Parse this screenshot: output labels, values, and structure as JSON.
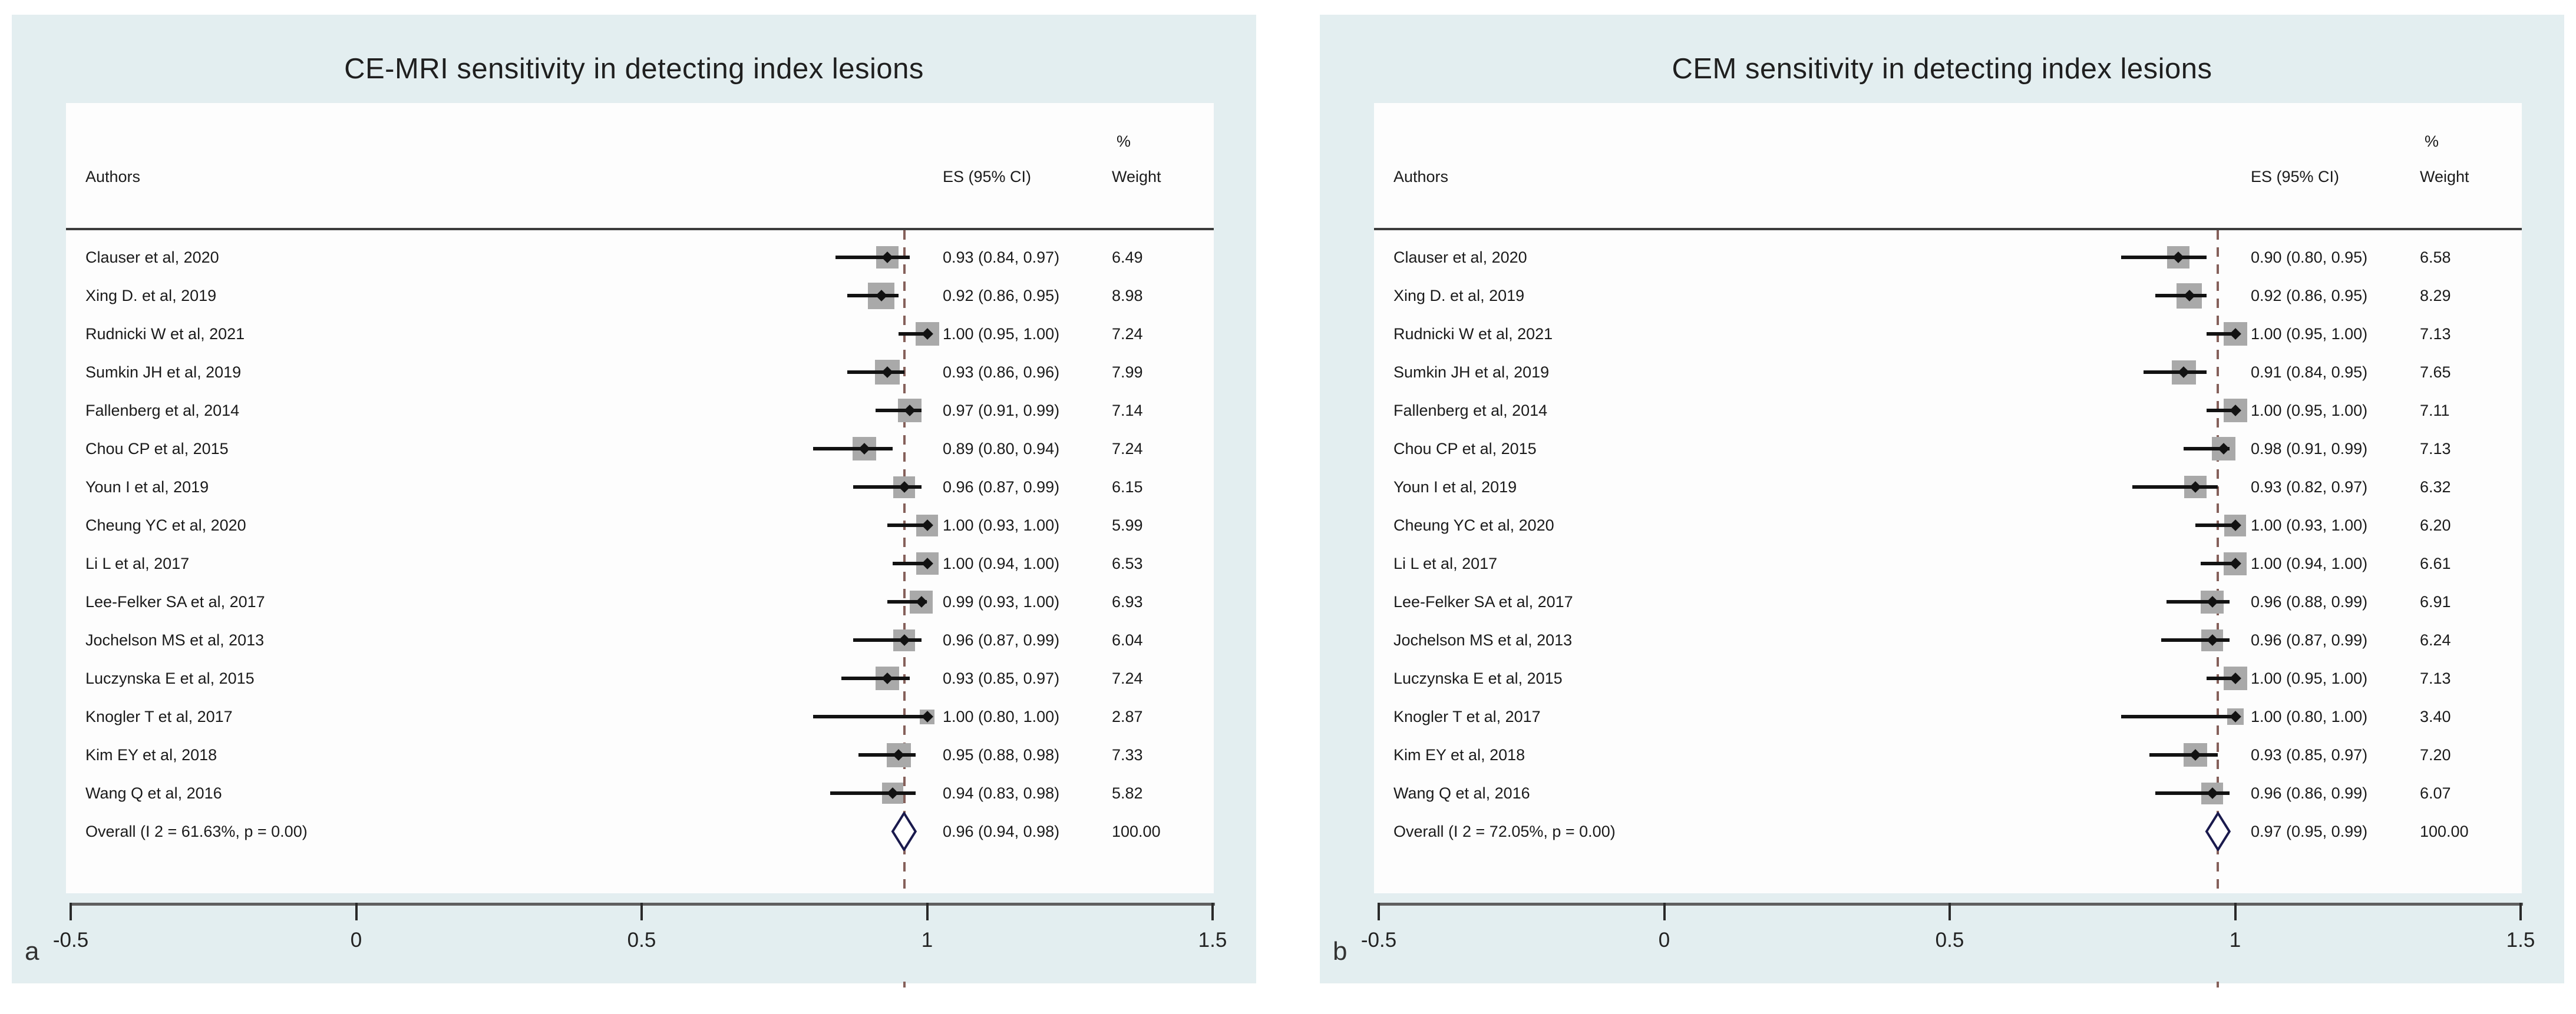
{
  "header": {
    "authors": "Authors",
    "es": "ES (95% CI)",
    "pct": "%",
    "weight": "Weight"
  },
  "colors": {
    "panel_bg": "#e3eef0",
    "plot_bg": "#fdfdfd",
    "text": "#1b1b1b",
    "axis_line": "#5f5f5f",
    "tick": "#2a2a2a",
    "header_separator": "#3c3c3c",
    "reference_line": "#85605a",
    "ci_line": "#121212",
    "point_marker": "#121212",
    "weight_square": "#a9a9a9",
    "diamond_stroke": "#1a1a4d",
    "diamond_fill": "#ffffff"
  },
  "chart_data": [
    {
      "type": "forest",
      "panel_label": "a",
      "title": "CE-MRI sensitivity in detecting index lesions",
      "xlim": [
        -0.5,
        1.5
      ],
      "x_ticks": [
        {
          "value": -0.5,
          "label": "-0.5"
        },
        {
          "value": 0,
          "label": "0"
        },
        {
          "value": 0.5,
          "label": "0.5"
        },
        {
          "value": 1,
          "label": "1"
        },
        {
          "value": 1.5,
          "label": "1.5"
        }
      ],
      "reference_line_at": 0.96,
      "studies": [
        {
          "author": "Clauser et al, 2020",
          "es": 0.93,
          "ci_lo": 0.84,
          "ci_hi": 0.97,
          "es_label": "0.93 (0.84, 0.97)",
          "weight": 6.49,
          "weight_label": "6.49"
        },
        {
          "author": "Xing D. et al, 2019",
          "es": 0.92,
          "ci_lo": 0.86,
          "ci_hi": 0.95,
          "es_label": "0.92 (0.86, 0.95)",
          "weight": 8.98,
          "weight_label": "8.98"
        },
        {
          "author": "Rudnicki W et al, 2021",
          "es": 1.0,
          "ci_lo": 0.95,
          "ci_hi": 1.0,
          "es_label": "1.00 (0.95, 1.00)",
          "weight": 7.24,
          "weight_label": "7.24"
        },
        {
          "author": "Sumkin JH et al, 2019",
          "es": 0.93,
          "ci_lo": 0.86,
          "ci_hi": 0.96,
          "es_label": "0.93 (0.86, 0.96)",
          "weight": 7.99,
          "weight_label": "7.99"
        },
        {
          "author": "Fallenberg et al, 2014",
          "es": 0.97,
          "ci_lo": 0.91,
          "ci_hi": 0.99,
          "es_label": "0.97 (0.91, 0.99)",
          "weight": 7.14,
          "weight_label": "7.14"
        },
        {
          "author": "Chou CP et al, 2015",
          "es": 0.89,
          "ci_lo": 0.8,
          "ci_hi": 0.94,
          "es_label": "0.89 (0.80, 0.94)",
          "weight": 7.24,
          "weight_label": "7.24"
        },
        {
          "author": "Youn I et al, 2019",
          "es": 0.96,
          "ci_lo": 0.87,
          "ci_hi": 0.99,
          "es_label": "0.96 (0.87, 0.99)",
          "weight": 6.15,
          "weight_label": "6.15"
        },
        {
          "author": "Cheung YC et al, 2020",
          "es": 1.0,
          "ci_lo": 0.93,
          "ci_hi": 1.0,
          "es_label": "1.00 (0.93, 1.00)",
          "weight": 5.99,
          "weight_label": "5.99"
        },
        {
          "author": "Li L et al, 2017",
          "es": 1.0,
          "ci_lo": 0.94,
          "ci_hi": 1.0,
          "es_label": "1.00 (0.94, 1.00)",
          "weight": 6.53,
          "weight_label": "6.53"
        },
        {
          "author": "Lee-Felker SA et al, 2017",
          "es": 0.99,
          "ci_lo": 0.93,
          "ci_hi": 1.0,
          "es_label": "0.99 (0.93, 1.00)",
          "weight": 6.93,
          "weight_label": "6.93"
        },
        {
          "author": "Jochelson MS et al, 2013",
          "es": 0.96,
          "ci_lo": 0.87,
          "ci_hi": 0.99,
          "es_label": "0.96 (0.87, 0.99)",
          "weight": 6.04,
          "weight_label": "6.04"
        },
        {
          "author": "Luczynska E et al, 2015",
          "es": 0.93,
          "ci_lo": 0.85,
          "ci_hi": 0.97,
          "es_label": "0.93 (0.85, 0.97)",
          "weight": 7.24,
          "weight_label": "7.24"
        },
        {
          "author": "Knogler T et al, 2017",
          "es": 1.0,
          "ci_lo": 0.8,
          "ci_hi": 1.0,
          "es_label": "1.00 (0.80, 1.00)",
          "weight": 2.87,
          "weight_label": "2.87"
        },
        {
          "author": "Kim EY et al, 2018",
          "es": 0.95,
          "ci_lo": 0.88,
          "ci_hi": 0.98,
          "es_label": "0.95 (0.88, 0.98)",
          "weight": 7.33,
          "weight_label": "7.33"
        },
        {
          "author": "Wang Q et al, 2016",
          "es": 0.94,
          "ci_lo": 0.83,
          "ci_hi": 0.98,
          "es_label": "0.94 (0.83, 0.98)",
          "weight": 5.82,
          "weight_label": "5.82"
        }
      ],
      "overall": {
        "label": "Overall  (I 2 = 61.63%, p = 0.00)",
        "es": 0.96,
        "ci_lo": 0.94,
        "ci_hi": 0.98,
        "es_label": "0.96 (0.94, 0.98)",
        "weight_label": "100.00"
      }
    },
    {
      "type": "forest",
      "panel_label": "b",
      "title": "CEM sensitivity in detecting index lesions",
      "xlim": [
        -0.5,
        1.5
      ],
      "x_ticks": [
        {
          "value": -0.5,
          "label": "-0.5"
        },
        {
          "value": 0,
          "label": "0"
        },
        {
          "value": 0.5,
          "label": "0.5"
        },
        {
          "value": 1,
          "label": "1"
        },
        {
          "value": 1.5,
          "label": "1.5"
        }
      ],
      "reference_line_at": 0.97,
      "studies": [
        {
          "author": "Clauser et al, 2020",
          "es": 0.9,
          "ci_lo": 0.8,
          "ci_hi": 0.95,
          "es_label": "0.90 (0.80, 0.95)",
          "weight": 6.58,
          "weight_label": "6.58"
        },
        {
          "author": "Xing D. et al, 2019",
          "es": 0.92,
          "ci_lo": 0.86,
          "ci_hi": 0.95,
          "es_label": "0.92 (0.86, 0.95)",
          "weight": 8.29,
          "weight_label": "8.29"
        },
        {
          "author": "Rudnicki W et al, 2021",
          "es": 1.0,
          "ci_lo": 0.95,
          "ci_hi": 1.0,
          "es_label": "1.00 (0.95, 1.00)",
          "weight": 7.13,
          "weight_label": "7.13"
        },
        {
          "author": "Sumkin JH et al, 2019",
          "es": 0.91,
          "ci_lo": 0.84,
          "ci_hi": 0.95,
          "es_label": "0.91 (0.84, 0.95)",
          "weight": 7.65,
          "weight_label": "7.65"
        },
        {
          "author": "Fallenberg et al, 2014",
          "es": 1.0,
          "ci_lo": 0.95,
          "ci_hi": 1.0,
          "es_label": "1.00 (0.95, 1.00)",
          "weight": 7.11,
          "weight_label": "7.11"
        },
        {
          "author": "Chou CP et al, 2015",
          "es": 0.98,
          "ci_lo": 0.91,
          "ci_hi": 0.99,
          "es_label": "0.98 (0.91, 0.99)",
          "weight": 7.13,
          "weight_label": "7.13"
        },
        {
          "author": "Youn I et al, 2019",
          "es": 0.93,
          "ci_lo": 0.82,
          "ci_hi": 0.97,
          "es_label": "0.93 (0.82, 0.97)",
          "weight": 6.32,
          "weight_label": "6.32"
        },
        {
          "author": "Cheung YC et al, 2020",
          "es": 1.0,
          "ci_lo": 0.93,
          "ci_hi": 1.0,
          "es_label": "1.00 (0.93, 1.00)",
          "weight": 6.2,
          "weight_label": "6.20"
        },
        {
          "author": "Li L et al, 2017",
          "es": 1.0,
          "ci_lo": 0.94,
          "ci_hi": 1.0,
          "es_label": "1.00 (0.94, 1.00)",
          "weight": 6.61,
          "weight_label": "6.61"
        },
        {
          "author": "Lee-Felker SA et al, 2017",
          "es": 0.96,
          "ci_lo": 0.88,
          "ci_hi": 0.99,
          "es_label": "0.96 (0.88, 0.99)",
          "weight": 6.91,
          "weight_label": "6.91"
        },
        {
          "author": "Jochelson MS et al, 2013",
          "es": 0.96,
          "ci_lo": 0.87,
          "ci_hi": 0.99,
          "es_label": "0.96 (0.87, 0.99)",
          "weight": 6.24,
          "weight_label": "6.24"
        },
        {
          "author": "Luczynska E et al, 2015",
          "es": 1.0,
          "ci_lo": 0.95,
          "ci_hi": 1.0,
          "es_label": "1.00 (0.95, 1.00)",
          "weight": 7.13,
          "weight_label": "7.13"
        },
        {
          "author": "Knogler T et al, 2017",
          "es": 1.0,
          "ci_lo": 0.8,
          "ci_hi": 1.0,
          "es_label": "1.00 (0.80, 1.00)",
          "weight": 3.4,
          "weight_label": "3.40"
        },
        {
          "author": "Kim EY et al, 2018",
          "es": 0.93,
          "ci_lo": 0.85,
          "ci_hi": 0.97,
          "es_label": "0.93 (0.85, 0.97)",
          "weight": 7.2,
          "weight_label": "7.20"
        },
        {
          "author": "Wang Q et al, 2016",
          "es": 0.96,
          "ci_lo": 0.86,
          "ci_hi": 0.99,
          "es_label": "0.96 (0.86, 0.99)",
          "weight": 6.07,
          "weight_label": "6.07"
        }
      ],
      "overall": {
        "label": "Overall  (I 2 = 72.05%, p = 0.00)",
        "es": 0.97,
        "ci_lo": 0.95,
        "ci_hi": 0.99,
        "es_label": "0.97 (0.95, 0.99)",
        "weight_label": "100.00"
      }
    }
  ]
}
